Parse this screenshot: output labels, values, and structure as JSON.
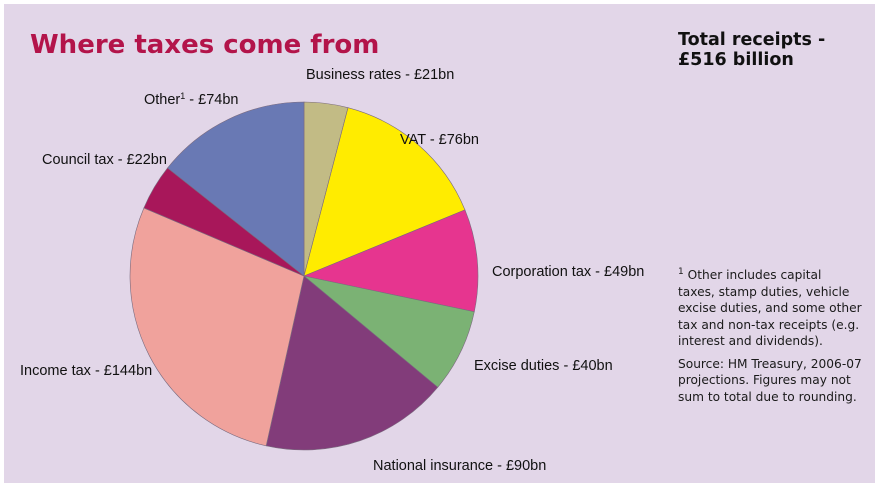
{
  "chart_data": {
    "type": "pie",
    "title": "Where taxes come from",
    "total_label": "Total receipts -\n£516 billion",
    "slices": [
      {
        "label": "Business rates - £21bn",
        "value": 21,
        "color": "#c2bb85"
      },
      {
        "label": "VAT - £76bn",
        "value": 76,
        "color": "#ffec00"
      },
      {
        "label": "Corporation tax - £49bn",
        "value": 49,
        "color": "#e6358f"
      },
      {
        "label": "Excise duties - £40bn",
        "value": 40,
        "color": "#7bb274"
      },
      {
        "label": "National insurance - £90bn",
        "value": 90,
        "color": "#823c7a"
      },
      {
        "label": "Income tax - £144bn",
        "value": 144,
        "color": "#f0a29c"
      },
      {
        "label": "Council tax - £22bn",
        "value": 22,
        "color": "#a8175a"
      },
      {
        "label_main": "Other",
        "label_sup": "1",
        "label_rest": " - £74bn",
        "value": 74,
        "color": "#6979b4"
      }
    ]
  },
  "footnote": {
    "note_marker": "1",
    "note_text": " Other includes capital taxes, stamp duties, vehicle excise duties, and some other tax and non-tax receipts (e.g. interest and dividends).",
    "source": "Source: HM Treasury, 2006-07 projections. Figures may not sum to total due to rounding."
  }
}
